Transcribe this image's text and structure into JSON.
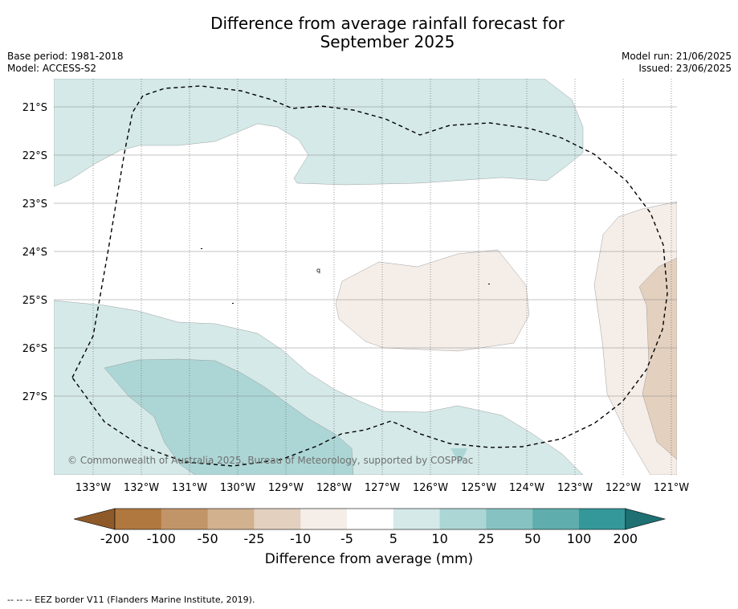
{
  "header": {
    "title_line1": "Difference from average rainfall forecast for",
    "title_line2": "September 2025",
    "base_period": "Base period: 1981-2018",
    "model": "Model: ACCESS-S2",
    "model_run": "Model run: 21/06/2025",
    "issued": "Issued: 23/06/2025"
  },
  "map": {
    "lon_labels": [
      "133°W",
      "132°W",
      "131°W",
      "130°W",
      "129°W",
      "128°W",
      "127°W",
      "126°W",
      "125°W",
      "124°W",
      "123°W",
      "122°W",
      "121°W"
    ],
    "lat_labels": [
      "21°S",
      "22°S",
      "23°S",
      "24°S",
      "25°S",
      "26°S",
      "27°S"
    ],
    "copyright": "© Commonwealth of Australia 2025, Bureau of Meteorology, supported by COSPPac",
    "colors": {
      "wet_light": "#d4e9e8",
      "wet_medium": "#acd6d5",
      "dry_light": "#f4ede8",
      "dry_medium": "#e3d0bf"
    }
  },
  "colorbar": {
    "ticks": [
      "-200",
      "-100",
      "-50",
      "-25",
      "-10",
      "-5",
      "5",
      "10",
      "25",
      "50",
      "100",
      "200"
    ],
    "colors": [
      "#8f5a2a",
      "#b0783f",
      "#c29569",
      "#d2b18f",
      "#e3d0bf",
      "#f4ede8",
      "#ffffff",
      "#d4e9e8",
      "#acd6d5",
      "#86c2c1",
      "#5faead",
      "#34989a",
      "#1e7072"
    ],
    "title": "Difference from average (mm)"
  },
  "footer": {
    "eez_note": "--  --  -- EEZ border V11 (Flanders Marine Institute, 2019)."
  }
}
